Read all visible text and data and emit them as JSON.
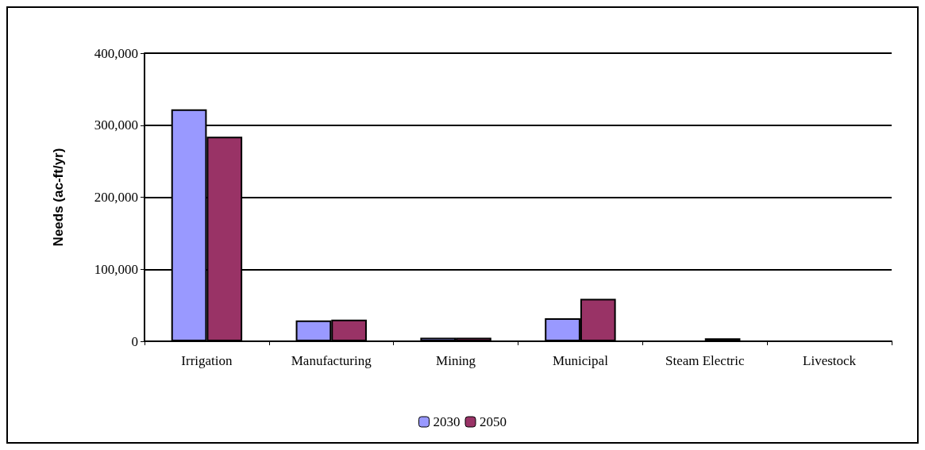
{
  "chart_data": {
    "type": "bar",
    "ylabel": "Needs (ac-ft/yr)",
    "categories": [
      "Irrigation",
      "Manufacturing",
      "Mining",
      "Municipal",
      "Steam Electric",
      "Livestock"
    ],
    "series": [
      {
        "name": "2030",
        "color": "#9999ff",
        "values": [
          322000,
          29000,
          5000,
          32000,
          0,
          0
        ]
      },
      {
        "name": "2050",
        "color": "#993366",
        "values": [
          284000,
          30000,
          5000,
          59000,
          4000,
          0
        ]
      }
    ],
    "ylim": [
      0,
      400000
    ],
    "yticks": [
      {
        "value": 0,
        "label": "0"
      },
      {
        "value": 100000,
        "label": "100,000"
      },
      {
        "value": 200000,
        "label": "200,000"
      },
      {
        "value": 300000,
        "label": "300,000"
      },
      {
        "value": 400000,
        "label": "400,000"
      }
    ],
    "grid": "y",
    "legend": "bottom"
  }
}
